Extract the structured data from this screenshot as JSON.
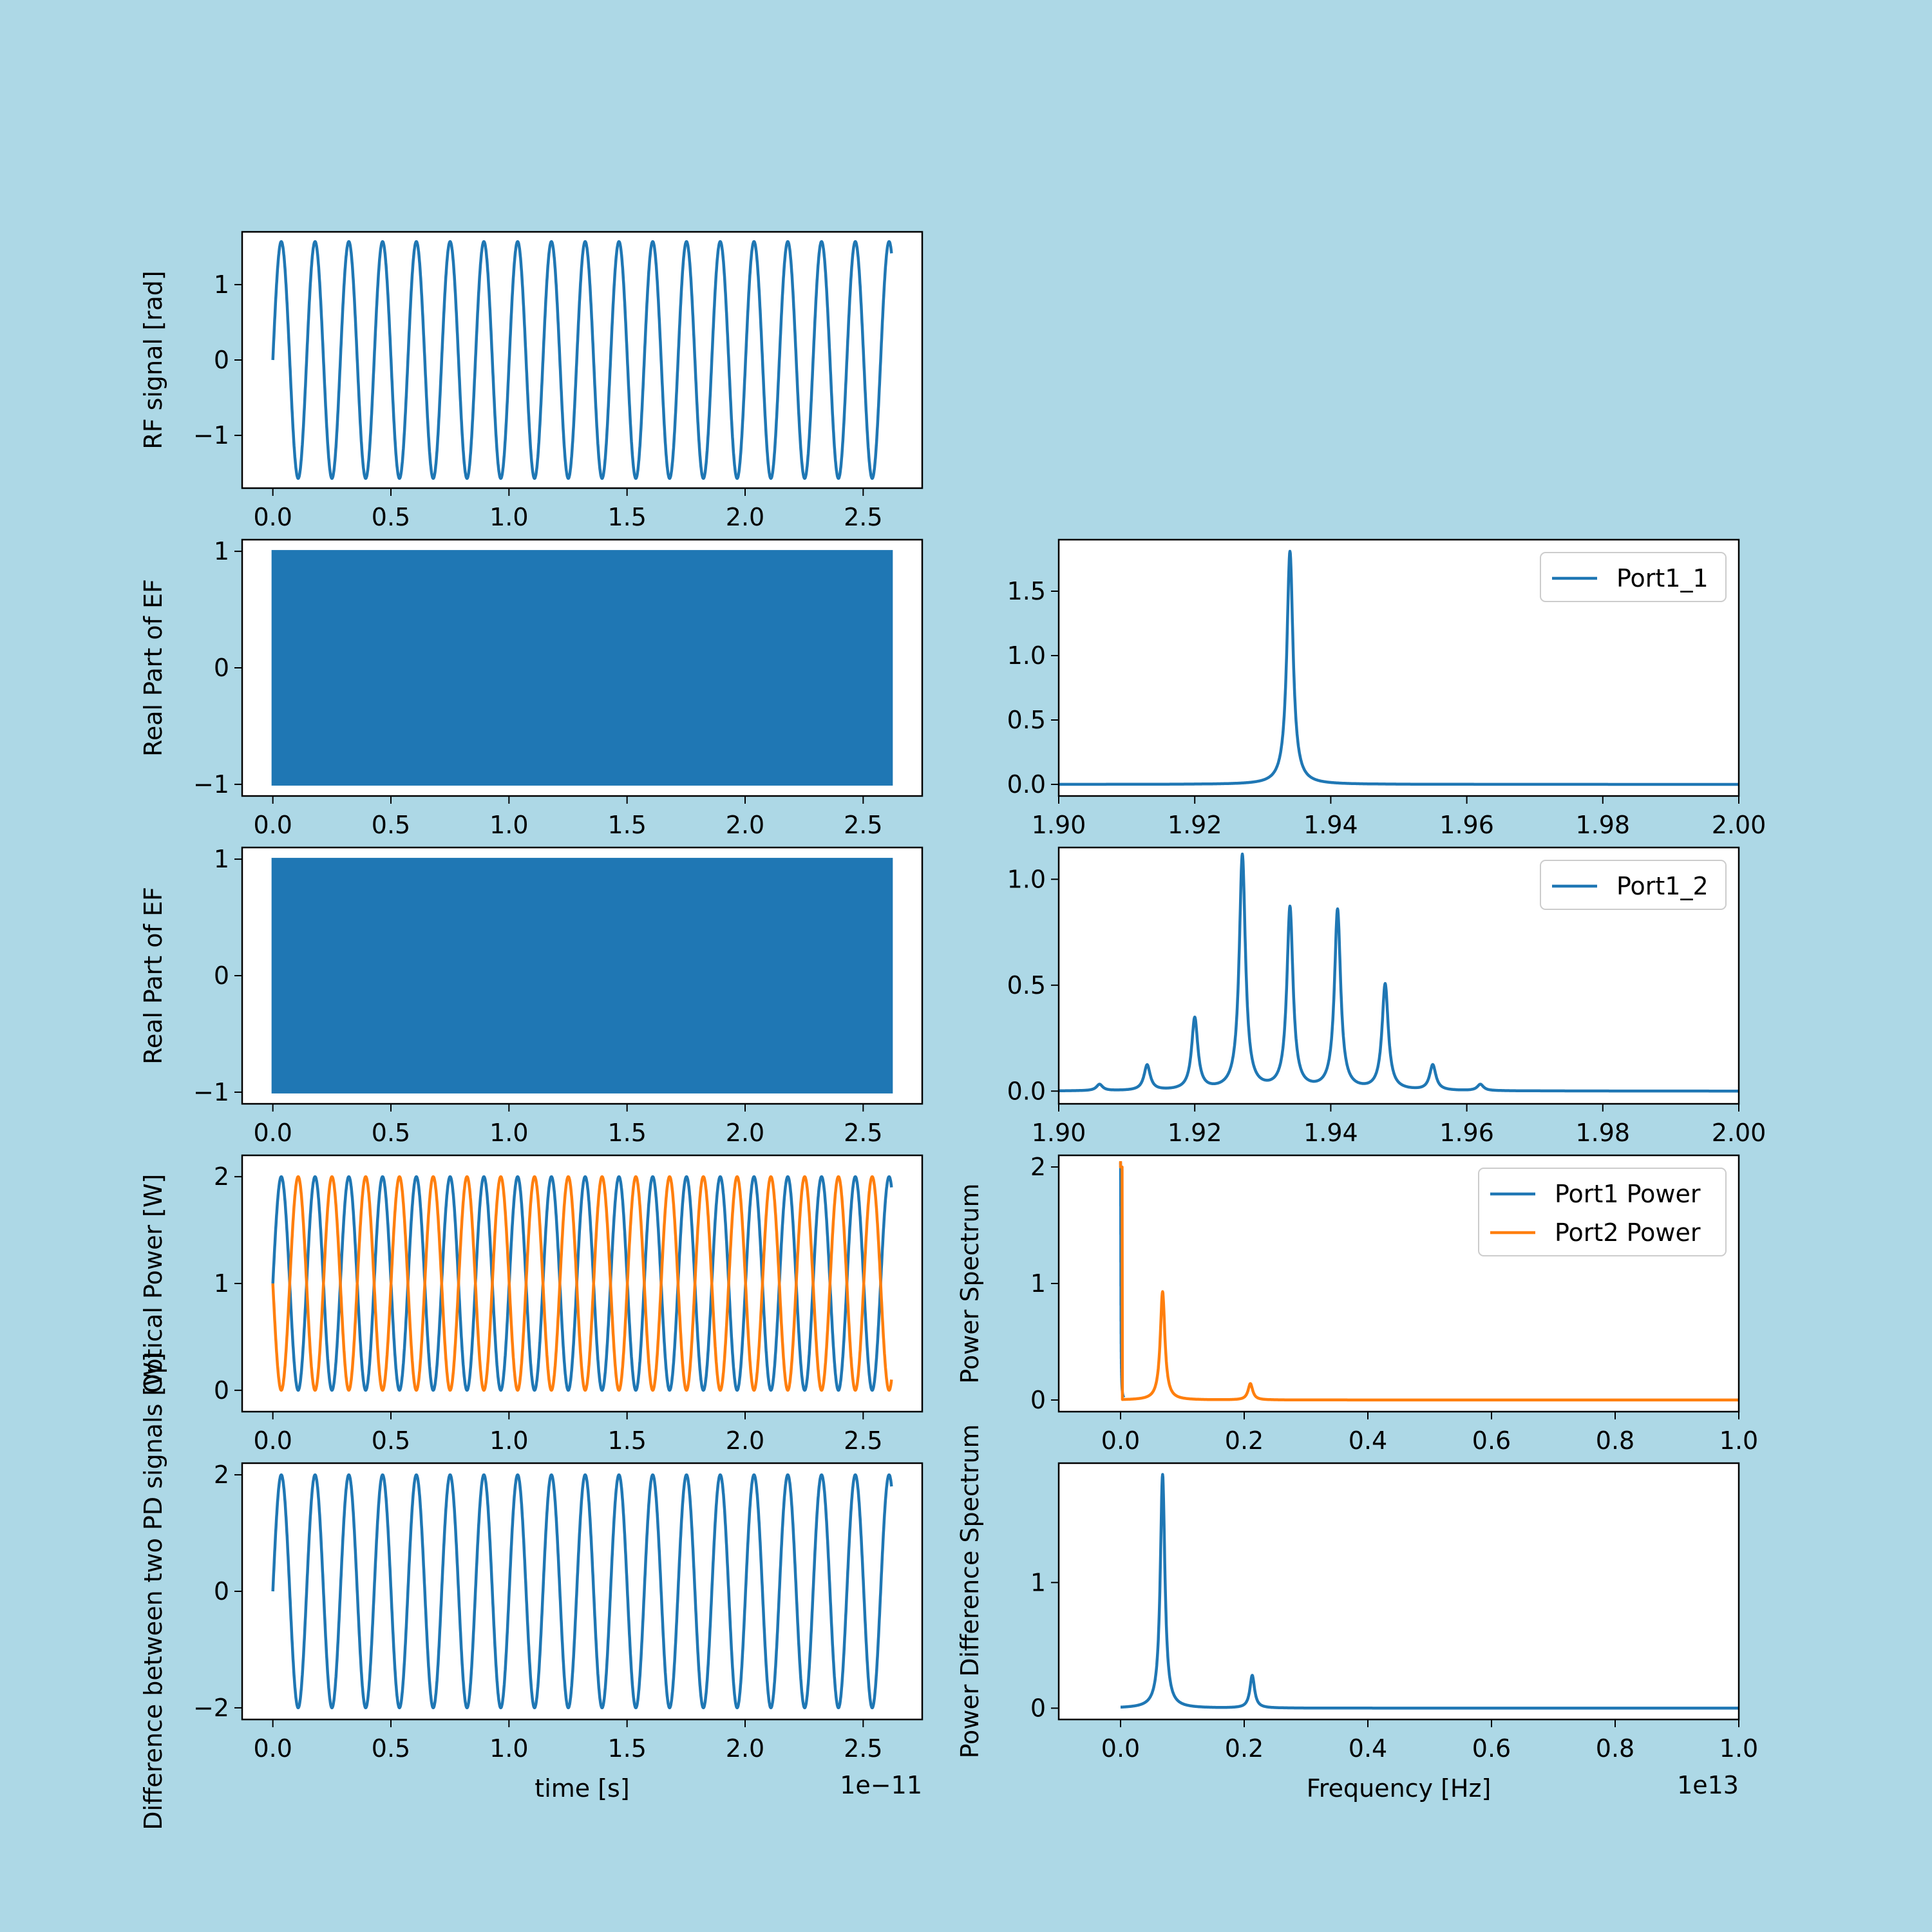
{
  "figure": {
    "background": "#add8e6"
  },
  "colors": {
    "blue": "#1f77b4",
    "orange": "#ff7f0e",
    "panel": "#ffffff",
    "axes": "#000000"
  },
  "chart_data": [
    {
      "id": "rf",
      "type": "line",
      "ylabel": "RF signal [rad]",
      "xlabel": "",
      "xlim": [
        -0.13,
        2.75
      ],
      "ylim": [
        -1.7,
        1.7
      ],
      "xticks": [
        "0.0",
        "0.5",
        "1.0",
        "1.5",
        "2.0",
        "2.5"
      ],
      "xtick_values": [
        0,
        0.5,
        1.0,
        1.5,
        2.0,
        2.5
      ],
      "yticks": [
        "−1",
        "0",
        "1"
      ],
      "ytick_values": [
        -1,
        0,
        1
      ],
      "series": [
        {
          "color": "#1f77b4",
          "function": "sine",
          "amplitude": 1.571,
          "period": 0.143,
          "phase": 0,
          "x_range": [
            0,
            2.62
          ]
        }
      ]
    },
    {
      "id": "ef1",
      "type": "area",
      "ylabel": "Real Part of EF",
      "xlim": [
        -0.13,
        2.75
      ],
      "ylim": [
        -1.1,
        1.1
      ],
      "xticks": [
        "0.0",
        "0.5",
        "1.0",
        "1.5",
        "2.0",
        "2.5"
      ],
      "xtick_values": [
        0,
        0.5,
        1.0,
        1.5,
        2.0,
        2.5
      ],
      "yticks": [
        "−1",
        "0",
        "1"
      ],
      "ytick_values": [
        -1,
        0,
        1
      ],
      "series": [
        {
          "color": "#1f77b4",
          "function": "dense-oscillation",
          "amplitude": 1.0,
          "x_range": [
            0,
            2.62
          ]
        }
      ]
    },
    {
      "id": "ef2",
      "type": "area",
      "ylabel": "Real Part of EF",
      "xlim": [
        -0.13,
        2.75
      ],
      "ylim": [
        -1.1,
        1.1
      ],
      "xticks": [
        "0.0",
        "0.5",
        "1.0",
        "1.5",
        "2.0",
        "2.5"
      ],
      "xtick_values": [
        0,
        0.5,
        1.0,
        1.5,
        2.0,
        2.5
      ],
      "yticks": [
        "−1",
        "0",
        "1"
      ],
      "ytick_values": [
        -1,
        0,
        1
      ],
      "series": [
        {
          "color": "#1f77b4",
          "function": "dense-oscillation",
          "amplitude": 1.0,
          "x_range": [
            0,
            2.62
          ]
        }
      ]
    },
    {
      "id": "power",
      "type": "line",
      "ylabel": "Optical Power [W]",
      "xlim": [
        -0.13,
        2.75
      ],
      "ylim": [
        -0.2,
        2.2
      ],
      "xticks": [
        "0.0",
        "0.5",
        "1.0",
        "1.5",
        "2.0",
        "2.5"
      ],
      "xtick_values": [
        0,
        0.5,
        1.0,
        1.5,
        2.0,
        2.5
      ],
      "yticks": [
        "0",
        "1",
        "2"
      ],
      "ytick_values": [
        0,
        1,
        2
      ],
      "series": [
        {
          "color": "#1f77b4",
          "function": "power-plus",
          "period": 0.143,
          "x_range": [
            0,
            2.62
          ]
        },
        {
          "color": "#ff7f0e",
          "function": "power-minus",
          "period": 0.143,
          "x_range": [
            0,
            2.62
          ]
        }
      ]
    },
    {
      "id": "diff",
      "type": "line",
      "ylabel": "Difference between two PD signals [W]",
      "xlabel": "time [s]",
      "offset_text": "1e−11",
      "xlim": [
        -0.13,
        2.75
      ],
      "ylim": [
        -2.2,
        2.2
      ],
      "xticks": [
        "0.0",
        "0.5",
        "1.0",
        "1.5",
        "2.0",
        "2.5"
      ],
      "xtick_values": [
        0,
        0.5,
        1.0,
        1.5,
        2.0,
        2.5
      ],
      "yticks": [
        "−2",
        "0",
        "2"
      ],
      "ytick_values": [
        -2,
        0,
        2
      ],
      "series": [
        {
          "color": "#1f77b4",
          "function": "sine",
          "amplitude": 2.0,
          "period": 0.143,
          "phase": 0,
          "x_range": [
            0,
            2.62
          ]
        }
      ]
    },
    {
      "id": "spec1",
      "type": "line",
      "xlim": [
        1.9,
        2.0
      ],
      "ylim": [
        -0.09,
        1.9
      ],
      "xticks": [
        "1.90",
        "1.92",
        "1.94",
        "1.96",
        "1.98",
        "2.00"
      ],
      "xtick_values": [
        1.9,
        1.92,
        1.94,
        1.96,
        1.98,
        2.0
      ],
      "yticks": [
        "0.0",
        "0.5",
        "1.0",
        "1.5"
      ],
      "ytick_values": [
        0,
        0.5,
        1.0,
        1.5
      ],
      "legend": {
        "placement": "upper right",
        "entries": [
          {
            "label": "Port1_1",
            "color": "#1f77b4"
          }
        ]
      },
      "series": [
        {
          "color": "#1f77b4",
          "function": "lorentz-peaks",
          "baseline": 0.0,
          "x_range": [
            1.9,
            2.0
          ],
          "peaks": [
            {
              "x": 1.934,
              "height": 1.81
            }
          ]
        }
      ]
    },
    {
      "id": "spec2",
      "type": "line",
      "xlim": [
        1.9,
        2.0
      ],
      "ylim": [
        -0.06,
        1.15
      ],
      "xticks": [
        "1.90",
        "1.92",
        "1.94",
        "1.96",
        "1.98",
        "2.00"
      ],
      "xtick_values": [
        1.9,
        1.92,
        1.94,
        1.96,
        1.98,
        2.0
      ],
      "yticks": [
        "0.0",
        "0.5",
        "1.0"
      ],
      "ytick_values": [
        0,
        0.5,
        1.0
      ],
      "legend": {
        "placement": "upper right",
        "entries": [
          {
            "label": "Port1_2",
            "color": "#1f77b4"
          }
        ]
      },
      "series": [
        {
          "color": "#1f77b4",
          "function": "lorentz-peaks",
          "baseline": 0.0,
          "x_range": [
            1.9,
            2.0
          ],
          "peaks": [
            {
              "x": 1.906,
              "height": 0.03
            },
            {
              "x": 1.913,
              "height": 0.12
            },
            {
              "x": 1.92,
              "height": 0.34
            },
            {
              "x": 1.927,
              "height": 1.11
            },
            {
              "x": 1.934,
              "height": 0.86
            },
            {
              "x": 1.941,
              "height": 0.85
            },
            {
              "x": 1.948,
              "height": 0.5
            },
            {
              "x": 1.955,
              "height": 0.12
            },
            {
              "x": 1.962,
              "height": 0.03
            }
          ]
        }
      ]
    },
    {
      "id": "pspec",
      "type": "line",
      "ylabel": "Power Spectrum",
      "xlim": [
        -0.1,
        1.0
      ],
      "ylim": [
        -0.1,
        2.1
      ],
      "xticks": [
        "0.0",
        "0.2",
        "0.4",
        "0.6",
        "0.8",
        "1.0"
      ],
      "xtick_values": [
        0,
        0.2,
        0.4,
        0.6,
        0.8,
        1.0
      ],
      "yticks": [
        "0",
        "1",
        "2"
      ],
      "ytick_values": [
        0,
        1,
        2
      ],
      "legend": {
        "placement": "upper right",
        "entries": [
          {
            "label": "Port1 Power",
            "color": "#1f77b4"
          },
          {
            "label": "Port2 Power",
            "color": "#ff7f0e"
          }
        ]
      },
      "series": [
        {
          "color": "#1f77b4",
          "function": "lorentz-peaks",
          "baseline": 0.0,
          "x_range": [
            0.0,
            0.005
          ],
          "peaks": [
            {
              "x": 0.0,
              "height": 2.04
            }
          ]
        },
        {
          "color": "#ff7f0e",
          "function": "lorentz-peaks",
          "baseline": 0.0,
          "dc": 2.0,
          "x_range": [
            0.0,
            1.0
          ],
          "peaks": [
            {
              "x": 0.068,
              "height": 0.93
            },
            {
              "x": 0.21,
              "height": 0.14
            }
          ]
        }
      ]
    },
    {
      "id": "dspec",
      "type": "line",
      "ylabel": "Power Difference Spectrum",
      "xlabel": "Frequency [Hz]",
      "offset_text": "1e13",
      "xlim": [
        -0.1,
        1.0
      ],
      "ylim": [
        -0.09,
        1.95
      ],
      "xticks": [
        "0.0",
        "0.2",
        "0.4",
        "0.6",
        "0.8",
        "1.0"
      ],
      "xtick_values": [
        0,
        0.2,
        0.4,
        0.6,
        0.8,
        1.0
      ],
      "yticks": [
        "0",
        "1"
      ],
      "ytick_values": [
        0,
        1
      ],
      "series": [
        {
          "color": "#1f77b4",
          "function": "lorentz-peaks",
          "baseline": 0.0,
          "x_range": [
            0.0,
            1.0
          ],
          "peaks": [
            {
              "x": 0.068,
              "height": 1.86
            },
            {
              "x": 0.213,
              "height": 0.26
            }
          ]
        }
      ]
    }
  ]
}
